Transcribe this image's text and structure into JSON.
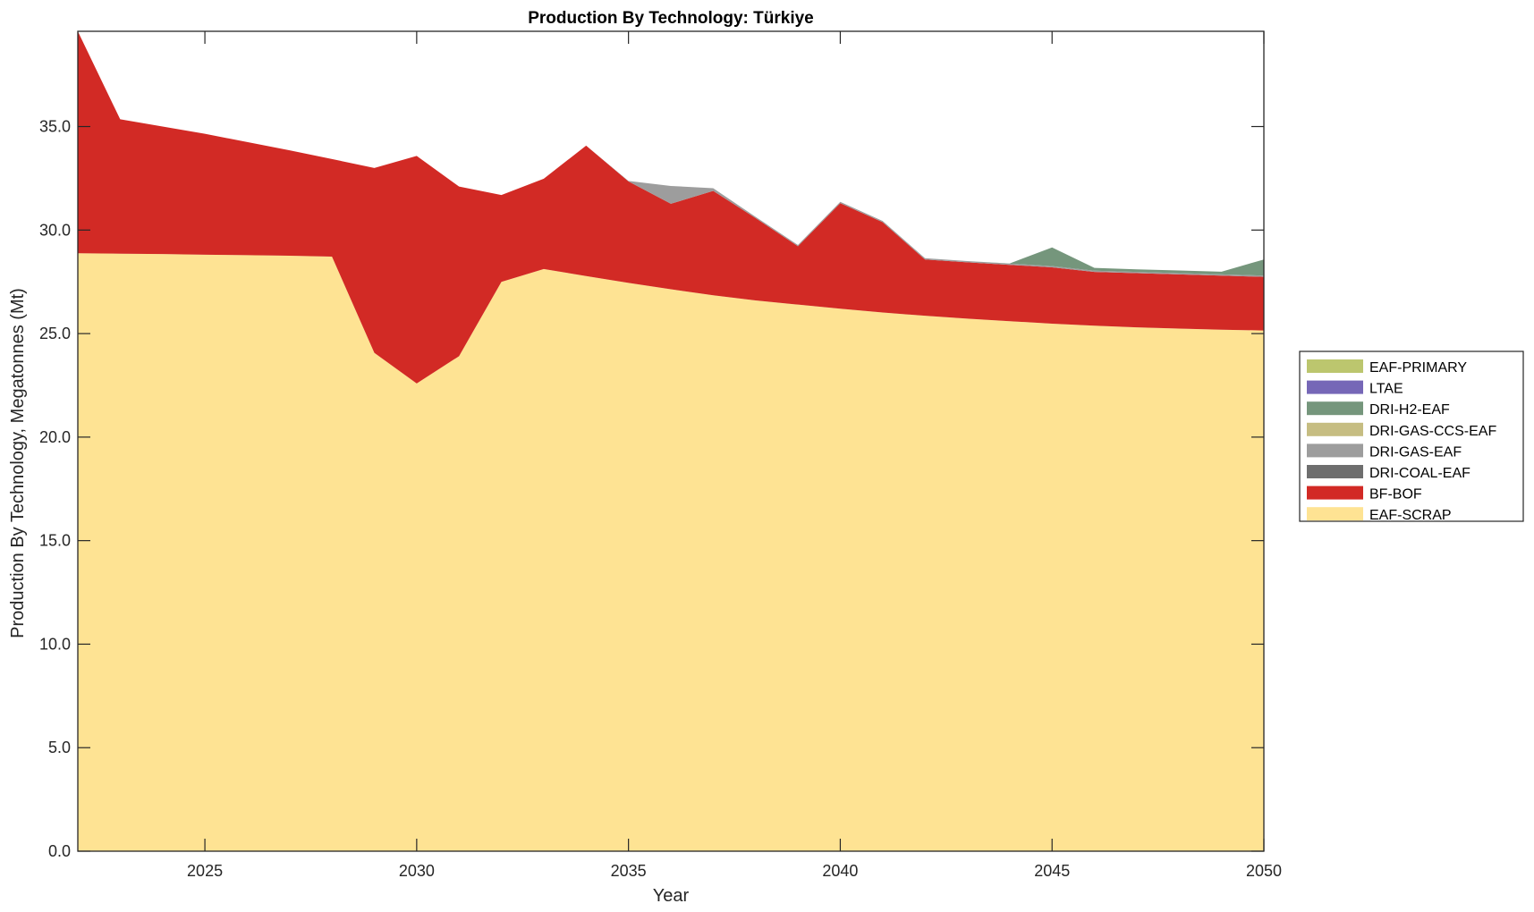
{
  "chart_data": {
    "type": "area",
    "stacked": true,
    "title": "Production By Technology: Türkiye",
    "xlabel": "Year",
    "ylabel": "Production By Technology, Megatonnes (Mt)",
    "xlim": [
      2022,
      2050
    ],
    "ylim": [
      0,
      39.6
    ],
    "xticks": [
      2025,
      2030,
      2035,
      2040,
      2045,
      2050
    ],
    "xtick_labels": [
      "2025",
      "2030",
      "2035",
      "2040",
      "2045",
      "2050"
    ],
    "yticks": [
      0,
      5,
      10,
      15,
      20,
      25,
      30,
      35
    ],
    "ytick_labels": [
      "0.0",
      "5.0",
      "10.0",
      "15.0",
      "20.0",
      "25.0",
      "30.0",
      "35.0"
    ],
    "grid": false,
    "legend_position": "right",
    "x": [
      2022,
      2023,
      2024,
      2025,
      2026,
      2027,
      2028,
      2029,
      2030,
      2031,
      2032,
      2033,
      2034,
      2035,
      2036,
      2037,
      2038,
      2039,
      2040,
      2041,
      2042,
      2043,
      2044,
      2045,
      2046,
      2047,
      2048,
      2049,
      2050
    ],
    "series": [
      {
        "name": "EAF-SCRAP",
        "color": "#fee393",
        "values": [
          28.88,
          28.86,
          28.84,
          28.81,
          28.79,
          28.76,
          28.72,
          24.07,
          22.59,
          23.91,
          27.5,
          28.12,
          27.78,
          27.45,
          27.14,
          26.85,
          26.6,
          26.4,
          26.2,
          26.02,
          25.86,
          25.72,
          25.6,
          25.48,
          25.38,
          25.3,
          25.24,
          25.19,
          25.15
        ]
      },
      {
        "name": "BF-BOF",
        "color": "#d22a25",
        "values": [
          10.72,
          6.49,
          6.16,
          5.84,
          5.46,
          5.09,
          4.71,
          8.93,
          10.99,
          8.19,
          4.19,
          4.36,
          6.3,
          4.9,
          4.13,
          5.04,
          3.98,
          2.82,
          5.1,
          4.36,
          2.72,
          2.72,
          2.72,
          2.72,
          2.6,
          2.62,
          2.62,
          2.61,
          2.59
        ]
      },
      {
        "name": "DRI-COAL-EAF",
        "color": "#6e6e6e",
        "values": [
          0,
          0,
          0,
          0,
          0,
          0,
          0,
          0,
          0,
          0,
          0,
          0,
          0,
          0,
          0,
          0,
          0,
          0,
          0,
          0,
          0,
          0,
          0,
          0,
          0,
          0,
          0,
          0,
          0
        ]
      },
      {
        "name": "DRI-GAS-EAF",
        "color": "#9d9d9d",
        "values": [
          0,
          0,
          0,
          0,
          0,
          0,
          0,
          0,
          0,
          0,
          0,
          0,
          0,
          0.02,
          0.86,
          0.13,
          0.06,
          0.06,
          0.06,
          0.06,
          0.06,
          0.06,
          0.06,
          0.06,
          0.06,
          0.06,
          0.06,
          0.06,
          0.06
        ]
      },
      {
        "name": "DRI-GAS-CCS-EAF",
        "color": "#c6bd82",
        "values": [
          0,
          0,
          0,
          0,
          0,
          0,
          0,
          0,
          0,
          0,
          0,
          0,
          0,
          0,
          0,
          0,
          0,
          0,
          0,
          0,
          0,
          0,
          0,
          0,
          0,
          0,
          0,
          0,
          0
        ]
      },
      {
        "name": "DRI-H2-EAF",
        "color": "#75967c",
        "values": [
          0,
          0,
          0,
          0,
          0,
          0,
          0,
          0,
          0,
          0,
          0,
          0,
          0,
          0,
          0,
          0,
          0,
          0,
          0,
          0,
          0,
          0,
          0.01,
          0.9,
          0.13,
          0.12,
          0.13,
          0.13,
          0.78
        ]
      },
      {
        "name": "LTAE",
        "color": "#7667b7",
        "values": [
          0,
          0,
          0,
          0,
          0,
          0,
          0,
          0,
          0,
          0,
          0,
          0,
          0,
          0,
          0,
          0,
          0,
          0,
          0,
          0,
          0,
          0,
          0,
          0,
          0,
          0,
          0,
          0,
          0
        ]
      },
      {
        "name": "EAF-PRIMARY",
        "color": "#bcc66e",
        "values": [
          0,
          0,
          0,
          0,
          0,
          0,
          0,
          0,
          0,
          0,
          0,
          0,
          0,
          0,
          0,
          0,
          0,
          0,
          0,
          0,
          0,
          0,
          0,
          0,
          0,
          0,
          0,
          0,
          0
        ]
      }
    ],
    "legend_order": [
      "EAF-PRIMARY",
      "LTAE",
      "DRI-H2-EAF",
      "DRI-GAS-CCS-EAF",
      "DRI-GAS-EAF",
      "DRI-COAL-EAF",
      "BF-BOF",
      "EAF-SCRAP"
    ]
  }
}
